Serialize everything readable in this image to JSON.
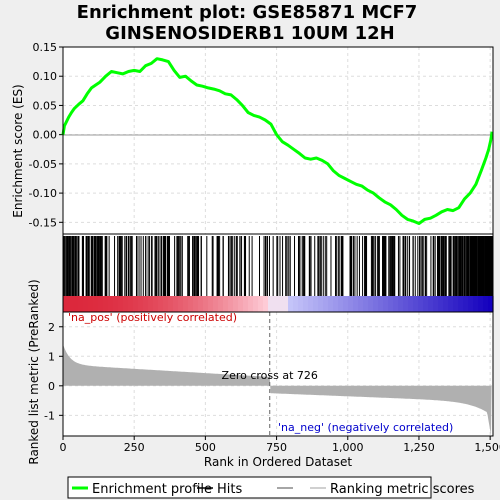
{
  "title_line1": "Enrichment plot: GSE85871 MCF7",
  "title_line2": "GINSENOSIDERB1 10UM 12H",
  "colors": {
    "es_line": "#00ff00",
    "hits": "#000000",
    "metric_fill": "#b0b0b0",
    "pos_label": "#cc0000",
    "neg_label": "#0000cc",
    "grid": "#dddddd"
  },
  "chart_data": [
    {
      "type": "line",
      "name": "enrichment-score",
      "ylabel": "Enrichment score (ES)",
      "ylim": [
        -0.17,
        0.15
      ],
      "xlim": [
        0,
        1510
      ],
      "yticks": [
        -0.15,
        -0.1,
        -0.05,
        0.0,
        0.05,
        0.1,
        0.15
      ],
      "ytick_labels": [
        "-0.15",
        "-0.10",
        "-0.05",
        "0.00",
        "0.05",
        "0.10",
        "0.15"
      ],
      "grid": true,
      "x": [
        0,
        5,
        12,
        20,
        30,
        40,
        55,
        70,
        85,
        100,
        115,
        130,
        150,
        170,
        190,
        210,
        230,
        250,
        270,
        290,
        310,
        330,
        350,
        370,
        390,
        410,
        430,
        450,
        470,
        490,
        510,
        530,
        550,
        570,
        590,
        610,
        630,
        650,
        670,
        690,
        710,
        730,
        750,
        770,
        790,
        810,
        830,
        850,
        870,
        890,
        910,
        930,
        950,
        970,
        990,
        1010,
        1030,
        1050,
        1070,
        1090,
        1110,
        1130,
        1150,
        1170,
        1190,
        1210,
        1230,
        1250,
        1270,
        1290,
        1310,
        1330,
        1350,
        1370,
        1390,
        1410,
        1430,
        1450,
        1470,
        1485,
        1495,
        1502,
        1507
      ],
      "y": [
        0.0,
        0.015,
        0.022,
        0.03,
        0.038,
        0.045,
        0.052,
        0.058,
        0.07,
        0.08,
        0.085,
        0.09,
        0.1,
        0.108,
        0.106,
        0.104,
        0.108,
        0.11,
        0.108,
        0.118,
        0.122,
        0.13,
        0.128,
        0.125,
        0.11,
        0.098,
        0.1,
        0.092,
        0.085,
        0.083,
        0.08,
        0.078,
        0.075,
        0.07,
        0.068,
        0.06,
        0.05,
        0.038,
        0.033,
        0.03,
        0.025,
        0.018,
        0.0,
        -0.012,
        -0.018,
        -0.025,
        -0.032,
        -0.04,
        -0.042,
        -0.04,
        -0.044,
        -0.05,
        -0.062,
        -0.07,
        -0.075,
        -0.08,
        -0.085,
        -0.088,
        -0.095,
        -0.1,
        -0.108,
        -0.115,
        -0.12,
        -0.128,
        -0.138,
        -0.145,
        -0.148,
        -0.152,
        -0.145,
        -0.143,
        -0.138,
        -0.132,
        -0.128,
        -0.13,
        -0.125,
        -0.11,
        -0.1,
        -0.085,
        -0.06,
        -0.04,
        -0.025,
        -0.01,
        0.005
      ]
    },
    {
      "type": "bar",
      "name": "ranked-list-metric",
      "ylabel": "Ranked list metric (PreRanked)",
      "xlabel": "Rank in Ordered Dataset",
      "ylim": [
        -1.7,
        2.5
      ],
      "yticks": [
        -1,
        0,
        1,
        2
      ],
      "ytick_labels": [
        "-1",
        "0",
        "1",
        "2"
      ],
      "xticks": [
        0,
        250,
        500,
        750,
        1000,
        1250,
        1500
      ],
      "xtick_labels": [
        "0",
        "250",
        "500",
        "750",
        "1,000",
        "1,250",
        "1,500"
      ],
      "zero_cross": 726,
      "zero_cross_label": "Zero cross at 726",
      "pos_label": "'na_pos' (positively correlated)",
      "neg_label": "'na_neg' (negatively correlated)",
      "grid": true
    }
  ],
  "legend": {
    "items": [
      {
        "label": "Enrichment profile",
        "kind": "line",
        "color": "#00ff00"
      },
      {
        "label": "Hits",
        "kind": "line",
        "color": "#000000"
      },
      {
        "label": "",
        "kind": "line",
        "color": "#888888"
      },
      {
        "label": "Ranking metric scores",
        "kind": "line",
        "color": "#c0c0c0"
      }
    ]
  }
}
